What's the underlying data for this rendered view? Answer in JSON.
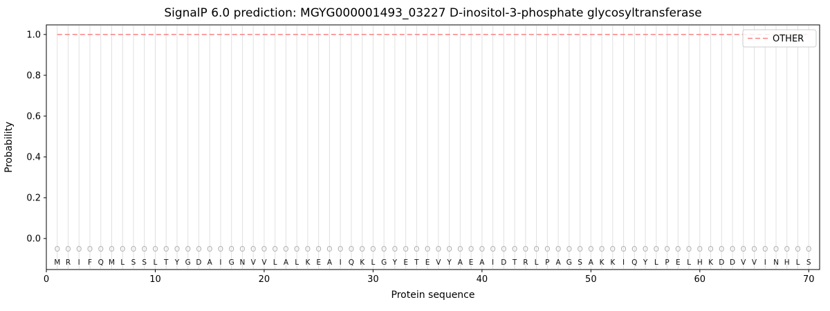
{
  "chart_data": {
    "type": "line",
    "title": "SignalP 6.0 prediction: MGYG000001493_03227 D-inositol-3-phosphate glycosyltransferase",
    "xlabel": "Protein sequence",
    "ylabel": "Probability",
    "xlim": [
      0,
      71
    ],
    "ylim": [
      -0.152,
      1.047
    ],
    "xticks": [
      0,
      10,
      20,
      30,
      40,
      50,
      60,
      70
    ],
    "yticks": [
      "0.0",
      "0.2",
      "0.4",
      "0.6",
      "0.8",
      "1.0"
    ],
    "grid": "vertical line at every residue position",
    "legend": {
      "position": "upper right",
      "entries": [
        {
          "label": "OTHER",
          "color": "#f98080",
          "dash": true
        }
      ]
    },
    "series": [
      {
        "name": "OTHER",
        "style": "dashed",
        "color": "#f98080",
        "y": 1.0,
        "x_start": 1,
        "x_end": 70,
        "note": "constant probability 1.0 across all 70 residues"
      }
    ],
    "sequence": "MRIFQMLSSLTYGDAIGNVVLALKEAIQKLGYETEVYAEAIDTRLPAGSAKKIQYLPELHKDDVVINHLS",
    "marker_row": "O",
    "colors": {
      "grid": "#e0e0e0",
      "marker": "#b0b0b0",
      "line": "#f98080",
      "sequence_text": "#111111",
      "axis_text": "#000000",
      "spine": "#000000",
      "legend_border": "#cccccc"
    }
  }
}
